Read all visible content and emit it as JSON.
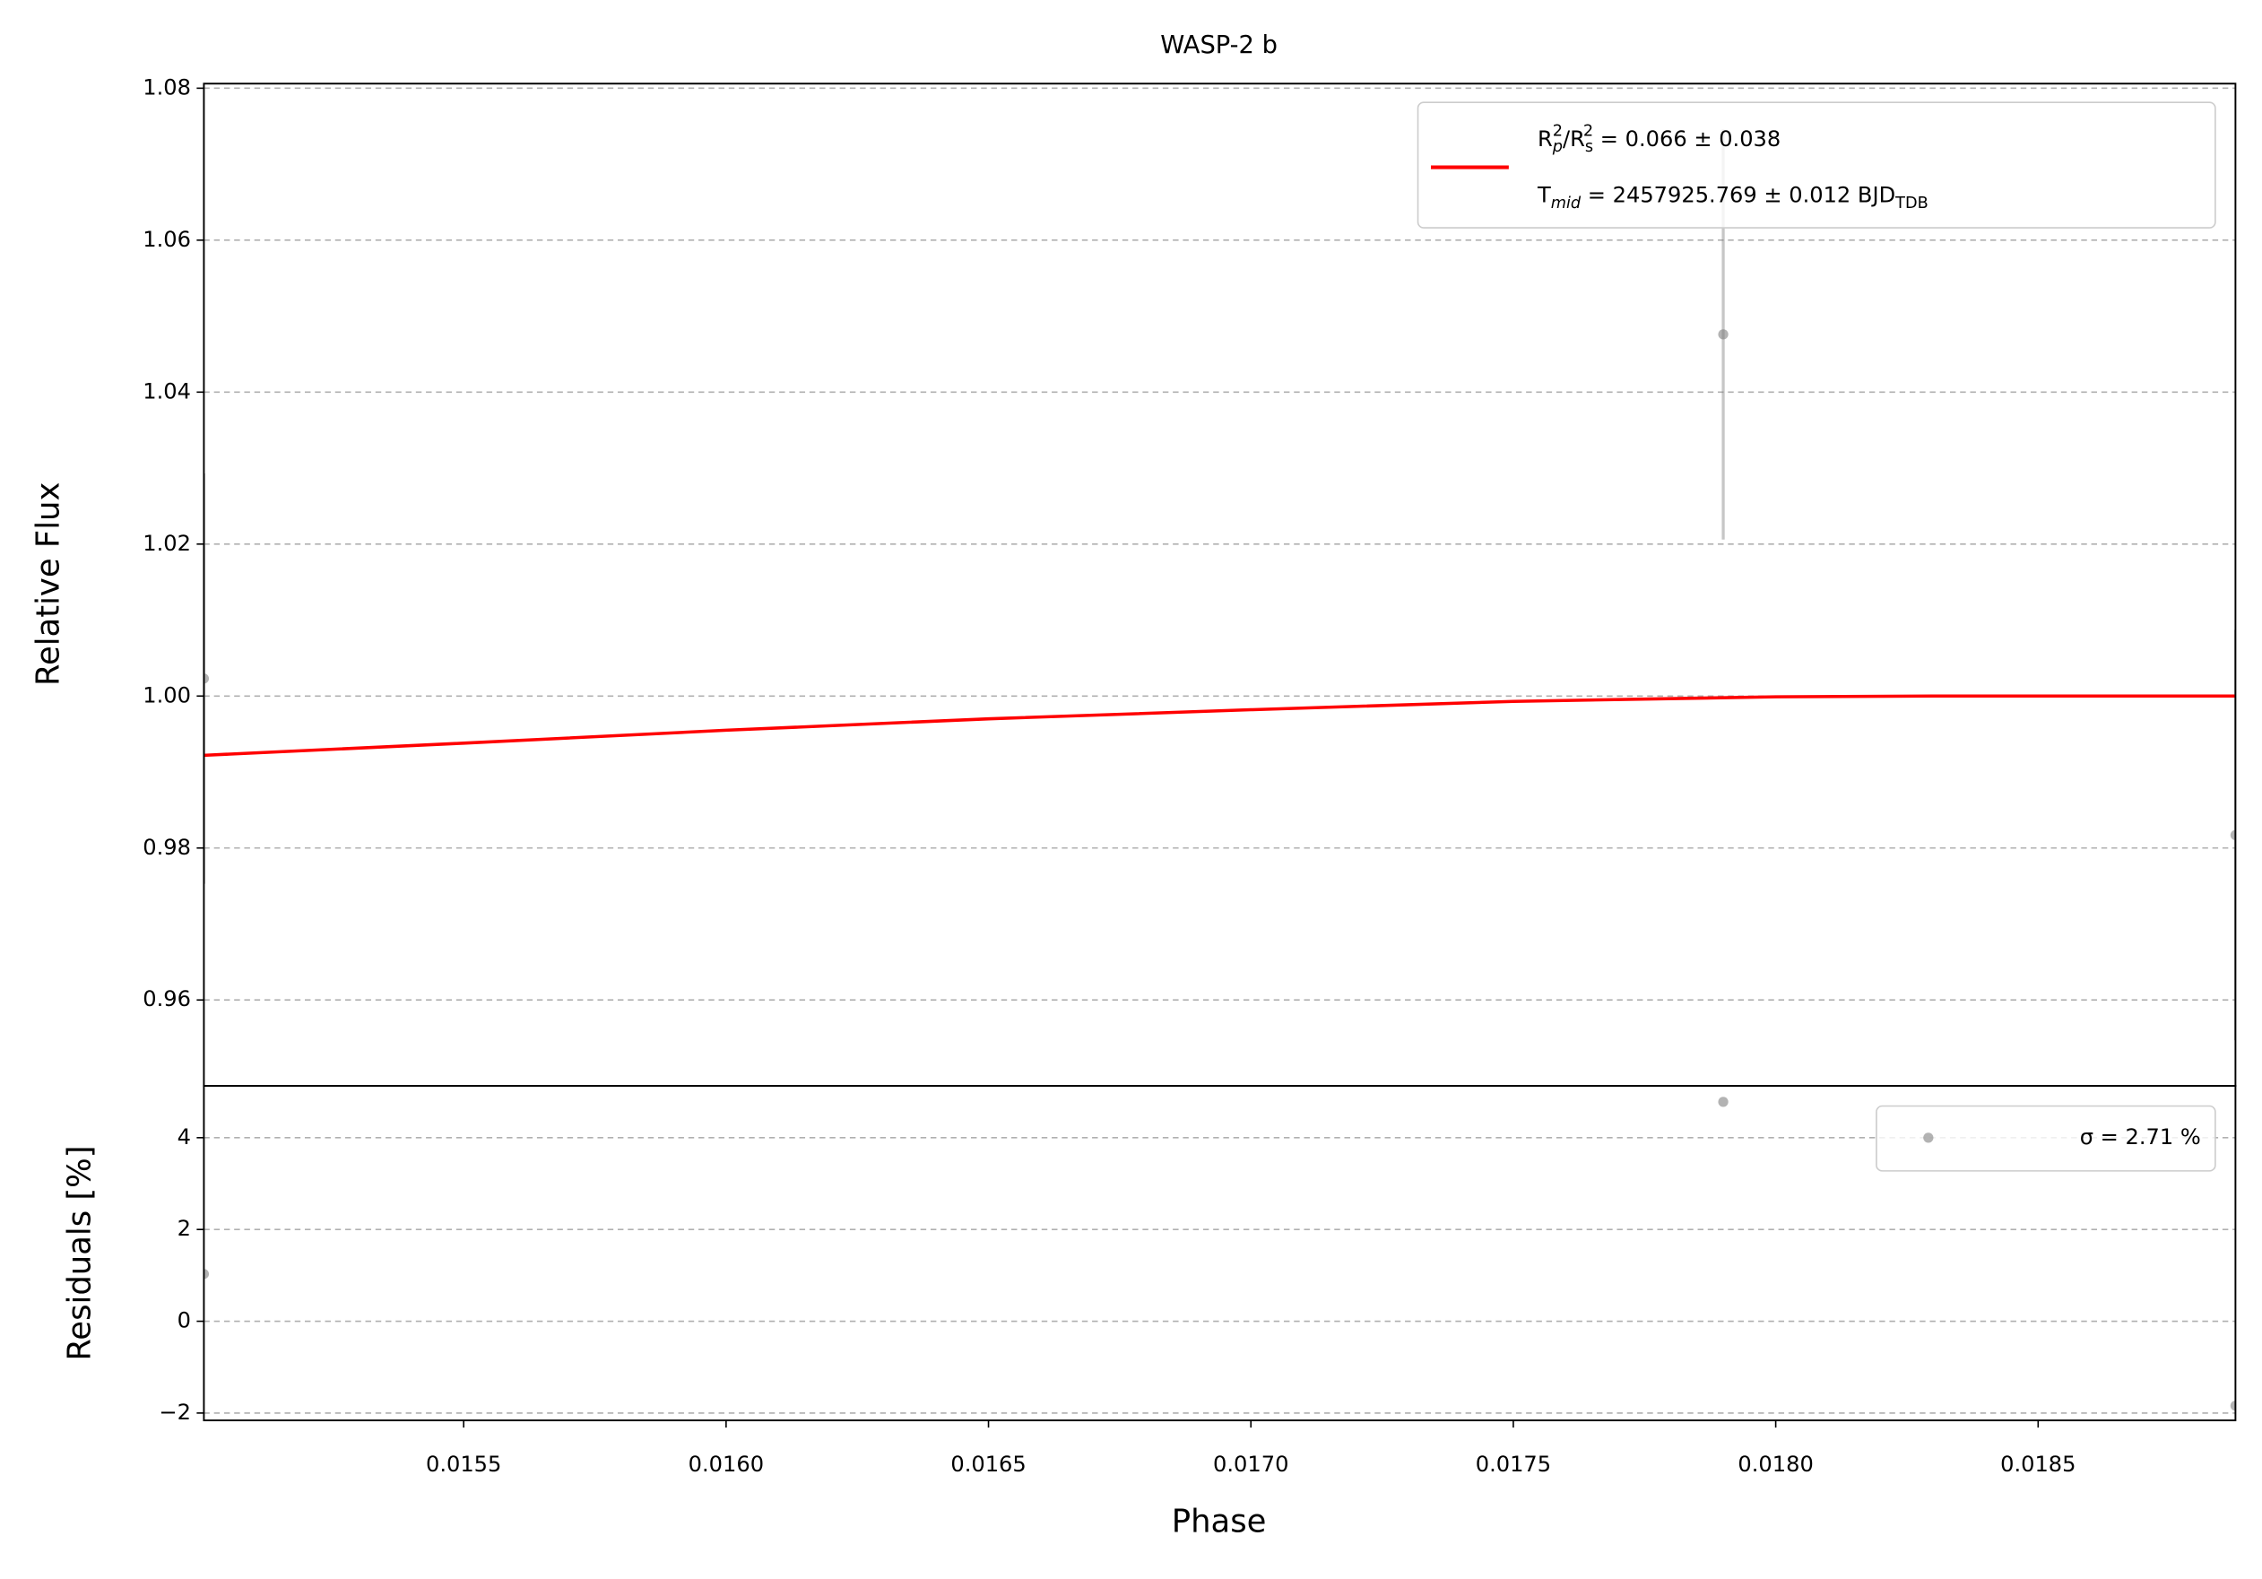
{
  "chart_data": [
    {
      "type": "errorbar",
      "title": "WASP-2 b",
      "ylabel": "Relative Flux",
      "x": [
        0.015005,
        0.0179,
        0.018876
      ],
      "values": [
        1.0023,
        1.0476,
        0.9817
      ],
      "errors": [
        0.027,
        0.027,
        0.027
      ],
      "color": "#808080",
      "model": {
        "name": [
          {
            "text": "R",
            "style": "base"
          },
          {
            "text": "p",
            "style": "sub"
          },
          {
            "text": "2",
            "style": "sup"
          },
          {
            "text": "/R",
            "style": "base"
          },
          {
            "text": "s",
            "style": "sub"
          },
          {
            "text": "2",
            "style": "sup"
          },
          {
            "text": " = 0.066 ± 0.038",
            "style": "base"
          }
        ],
        "name2": [
          {
            "text": "T",
            "style": "base"
          },
          {
            "text": "mid",
            "style": "sub"
          },
          {
            "text": " = 2457925.769 ± 0.012 BJD",
            "style": "base"
          },
          {
            "text": "TDB",
            "style": "sub"
          }
        ],
        "color": "#ff0000",
        "x": [
          0.015005,
          0.0155,
          0.016,
          0.0165,
          0.017,
          0.0175,
          0.018,
          0.0183,
          0.018876
        ],
        "values": [
          0.9922,
          0.9938,
          0.9955,
          0.997,
          0.9982,
          0.9993,
          0.9999,
          1.0,
          1.0
        ]
      },
      "xlim": [
        0.015005,
        0.018876
      ],
      "ylim": [
        0.9487,
        1.0806
      ],
      "yticks": [
        0.96,
        0.98,
        {
          "value": 1,
          "label": "1.00"
        },
        1.02,
        1.04,
        1.06,
        1.08
      ],
      "grid": true,
      "legend": "upper right"
    },
    {
      "type": "scatter",
      "ylabel": "Residuals [%]",
      "xlabel": "Phase",
      "label": "σ = 2.71 %",
      "x": [
        0.015005,
        0.0179,
        0.018876
      ],
      "values": [
        1.03,
        4.78,
        -1.84
      ],
      "color": "#808080",
      "xlim": [
        0.015005,
        0.018876
      ],
      "ylim": [
        -2.16,
        5.13
      ],
      "xticks": [
        0.0155,
        {
          "value": 0.016,
          "label": "0.0160"
        },
        0.0165,
        {
          "value": 0.017,
          "label": "0.0170"
        },
        0.0175,
        {
          "value": 0.018,
          "label": "0.0180"
        },
        0.0185
      ],
      "yticks": [
        {
          "value": -2,
          "label": "−2"
        },
        0,
        2,
        4
      ],
      "grid": true,
      "legend": "upper right"
    }
  ]
}
